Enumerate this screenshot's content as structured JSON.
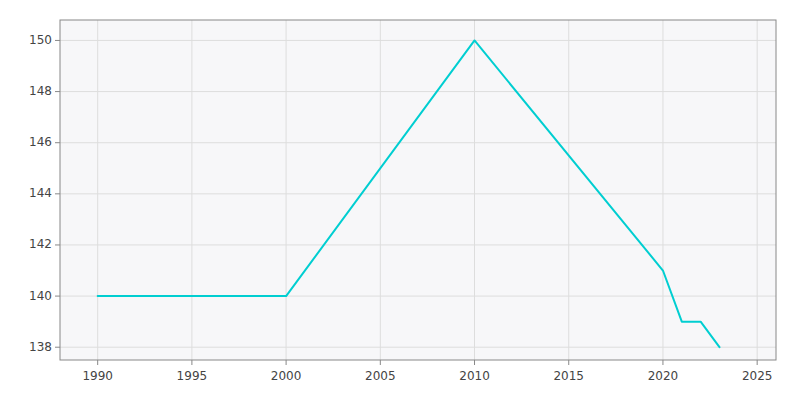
{
  "chart_data": {
    "type": "line",
    "x": [
      1990,
      2000,
      2010,
      2020,
      2021,
      2022,
      2023
    ],
    "values": [
      140,
      140,
      150,
      141,
      139,
      139,
      138
    ],
    "color": "#00CED1",
    "xlim": [
      1988,
      2026
    ],
    "ylim": [
      137.5,
      150.8
    ],
    "xticks": [
      1990,
      1995,
      2000,
      2005,
      2010,
      2015,
      2020,
      2025
    ],
    "yticks": [
      138,
      140,
      142,
      144,
      146,
      148,
      150
    ],
    "grid": true
  }
}
